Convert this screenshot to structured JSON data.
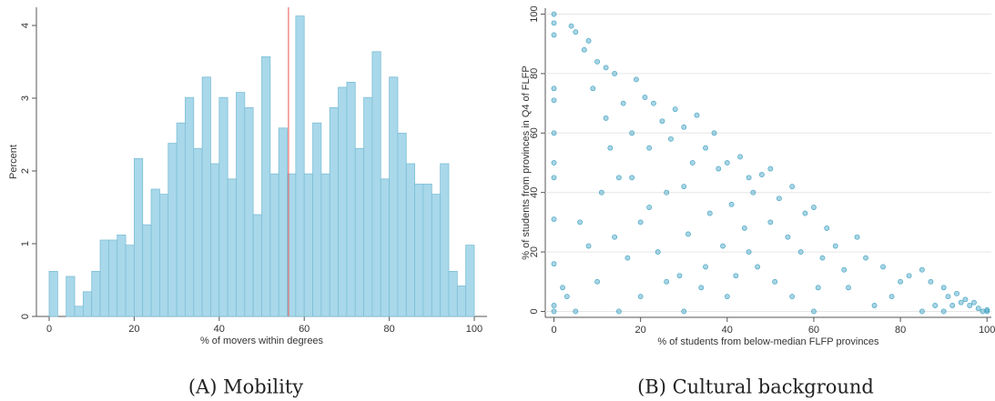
{
  "chart_data": [
    {
      "type": "histogram",
      "y_label": "Percent",
      "x_label": "% of movers within degrees",
      "caption": "(A) Mobility",
      "bins": [
        0,
        2,
        4,
        6,
        8,
        10,
        12,
        14,
        16,
        18,
        20,
        22,
        24,
        26,
        28,
        30,
        32,
        34,
        36,
        38,
        40,
        42,
        44,
        46,
        48,
        50,
        52,
        54,
        56,
        58,
        60,
        62,
        64,
        66,
        68,
        70,
        72,
        74,
        76,
        78,
        80,
        82,
        84,
        86,
        88,
        90,
        92,
        94,
        96,
        98,
        100
      ],
      "values": [
        0.62,
        0,
        0.55,
        0.14,
        0.34,
        0.62,
        1.05,
        1.05,
        1.12,
        0.98,
        2.17,
        1.26,
        1.75,
        1.68,
        2.38,
        2.66,
        3.01,
        2.31,
        3.29,
        2.1,
        3.01,
        1.89,
        3.08,
        2.87,
        1.4,
        3.57,
        1.96,
        2.59,
        1.96,
        4.13,
        1.96,
        2.66,
        1.96,
        2.87,
        3.15,
        3.22,
        2.31,
        3.01,
        3.64,
        1.89,
        3.29,
        2.52,
        2.1,
        1.82,
        1.82,
        1.68,
        2.1,
        0.62,
        0.42,
        0.98
      ],
      "color": "#a8d8ea",
      "vline": 56.3,
      "vline_color": "#e8534f",
      "xlim": [
        -3,
        103
      ],
      "ylim": [
        0,
        4.25
      ],
      "xticks": [
        0,
        20,
        40,
        60,
        80,
        100
      ],
      "yticks": [
        0,
        1,
        2,
        3,
        4
      ]
    },
    {
      "type": "scatter",
      "y_label": "% of students from provinces in Q4 of FLFP",
      "x_label": "% of students from below-median FLFP provinces",
      "caption": "(B) Cultural background",
      "x": [
        0,
        0,
        0,
        0,
        0,
        0,
        0,
        0,
        0,
        0,
        0,
        0,
        2,
        4,
        5,
        7,
        8,
        9,
        10,
        12,
        12,
        14,
        15,
        16,
        17,
        18,
        19,
        20,
        20,
        21,
        22,
        23,
        24,
        25,
        26,
        27,
        28,
        29,
        30,
        31,
        32,
        33,
        34,
        35,
        36,
        37,
        38,
        39,
        40,
        41,
        42,
        43,
        44,
        45,
        46,
        47,
        48,
        50,
        51,
        52,
        54,
        55,
        57,
        58,
        60,
        61,
        63,
        65,
        67,
        70,
        72,
        74,
        76,
        80,
        82,
        85,
        87,
        88,
        90,
        91,
        92,
        93,
        94,
        95,
        96,
        97,
        98,
        99,
        100,
        100,
        90,
        85,
        60,
        30,
        15,
        5,
        3,
        8,
        11,
        13,
        6,
        10,
        14,
        18,
        22,
        26,
        30,
        35,
        40,
        45,
        50,
        55,
        62,
        68,
        78
      ],
      "values": [
        100,
        97,
        93,
        75,
        71,
        60,
        50,
        45,
        31,
        16,
        2,
        0,
        8,
        96,
        94,
        88,
        91,
        75,
        84,
        65,
        82,
        80,
        45,
        70,
        18,
        60,
        78,
        30,
        5,
        72,
        55,
        70,
        20,
        64,
        40,
        58,
        68,
        12,
        62,
        26,
        50,
        66,
        8,
        55,
        33,
        60,
        48,
        22,
        50,
        36,
        12,
        52,
        28,
        45,
        40,
        15,
        46,
        30,
        10,
        38,
        25,
        42,
        20,
        33,
        35,
        8,
        28,
        22,
        14,
        25,
        18,
        2,
        15,
        10,
        12,
        14,
        10,
        2,
        8,
        5,
        2,
        6,
        3,
        4,
        2,
        3,
        1,
        0,
        0,
        0.5,
        0,
        0,
        0,
        0,
        0,
        0,
        5,
        22,
        40,
        55,
        30,
        10,
        25,
        45,
        35,
        10,
        42,
        15,
        5,
        20,
        48,
        5,
        18,
        8,
        5
      ],
      "color": "#3b9fc2",
      "grid": true,
      "xlim": [
        -2,
        101
      ],
      "ylim": [
        -2,
        102
      ],
      "xticks": [
        0,
        20,
        40,
        60,
        80,
        100
      ],
      "yticks": [
        0,
        20,
        40,
        60,
        80,
        100
      ]
    }
  ]
}
